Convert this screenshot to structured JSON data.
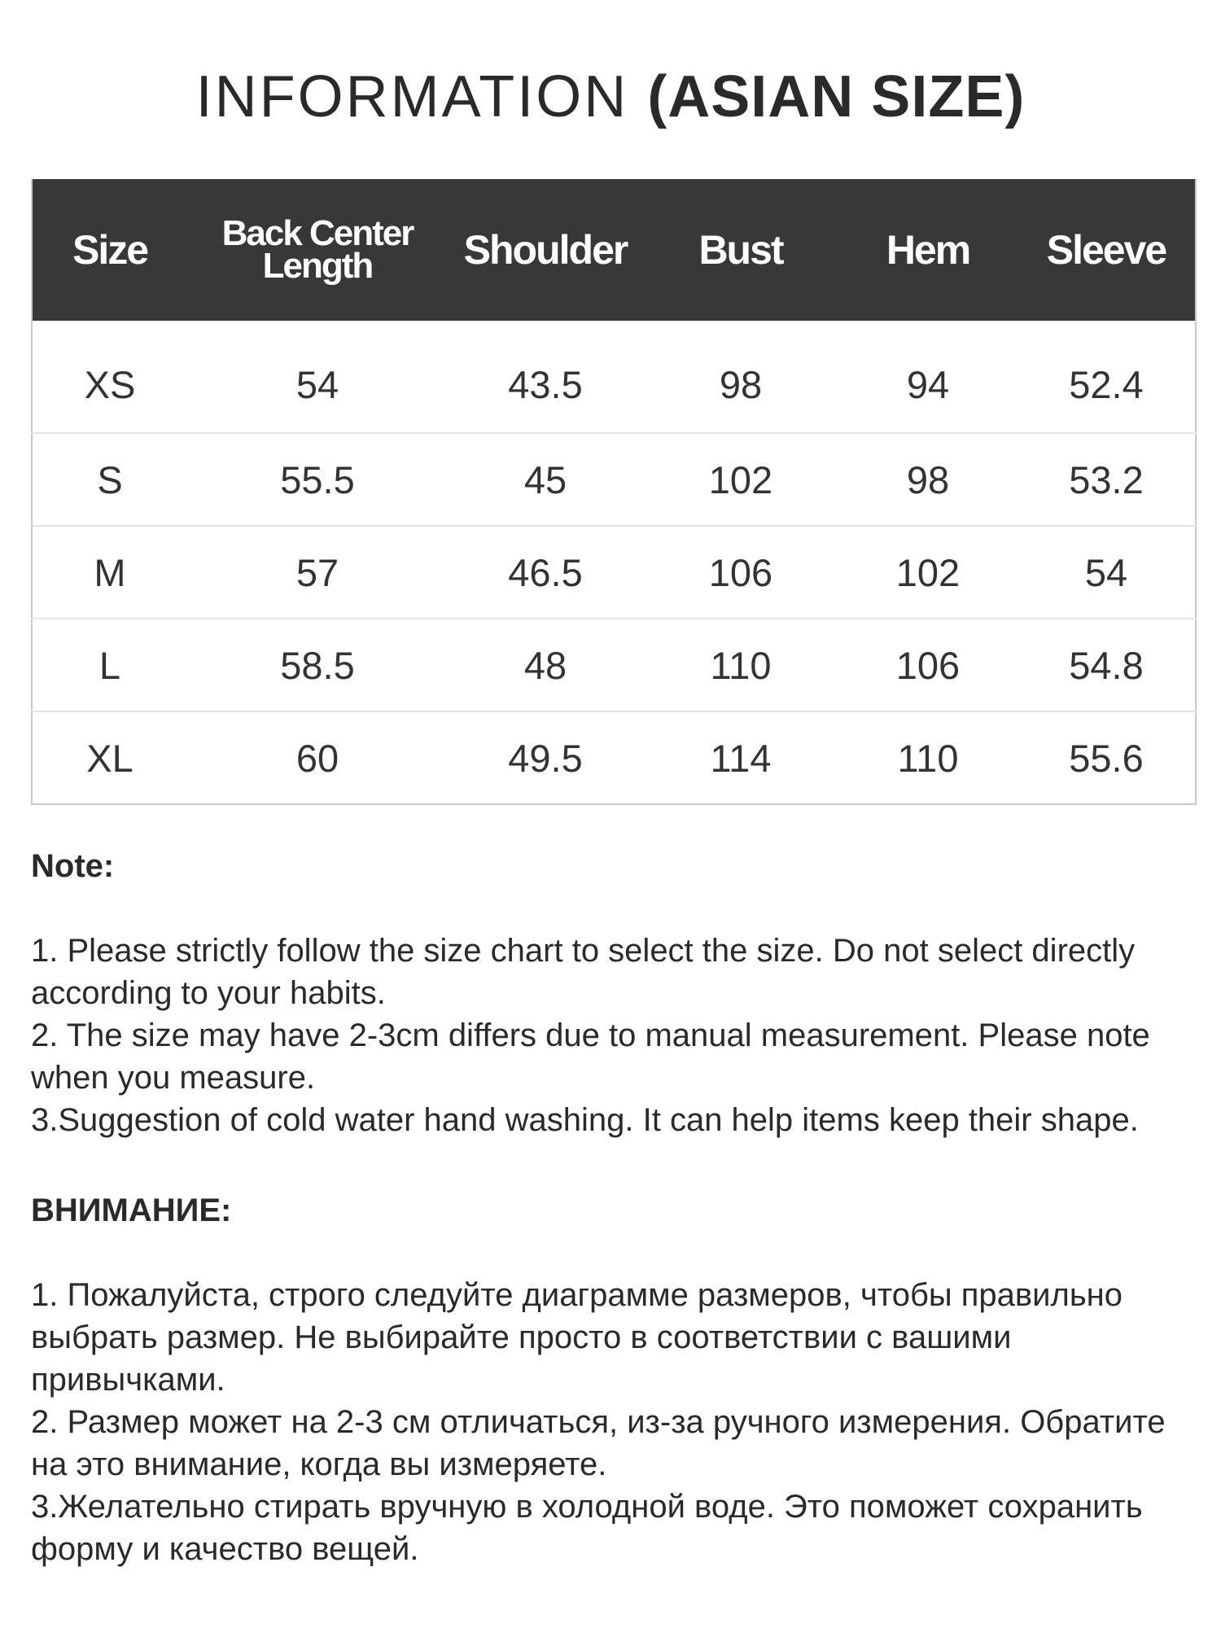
{
  "title": {
    "light": "INFORMATION",
    "bold": "(ASIAN SIZE)"
  },
  "table": {
    "headers": [
      "Size",
      "Back Center Length",
      "Shoulder",
      "Bust",
      "Hem",
      "Sleeve"
    ],
    "rows": [
      [
        "XS",
        "54",
        "43.5",
        "98",
        "94",
        "52.4"
      ],
      [
        "S",
        "55.5",
        "45",
        "102",
        "98",
        "53.2"
      ],
      [
        "M",
        "57",
        "46.5",
        "106",
        "102",
        "54"
      ],
      [
        "L",
        "58.5",
        "48",
        "110",
        "106",
        "54.8"
      ],
      [
        "XL",
        "60",
        "49.5",
        "114",
        "110",
        "55.6"
      ]
    ]
  },
  "note": {
    "heading": "Note:",
    "items": [
      "1. Please strictly follow the size chart  to select the size. Do not select directly according to your habits.",
      "2. The size may have 2-3cm differs due to manual measurement. Please note when you measure.",
      "3.Suggestion of cold water hand washing. It can help items keep their shape."
    ]
  },
  "note_ru": {
    "heading": "ВНИМАНИЕ:",
    "items": [
      "1. Пожалуйста, строго следуйте диаграмме размеров, чтобы правильно выбрать размер. Не выбирайте просто в соответствии с вашими привычками.",
      "2. Размер может на 2-3 см отличаться, из-за ручного измерения. Обратите на это внимание, когда вы измеряете.",
      "3.Желательно стирать вручную в холодной воде. Это поможет сохранить форму и качество вещей."
    ]
  },
  "colors": {
    "header_bg": "#383838",
    "header_text": "#ffffff",
    "row_border": "#e4e4e4"
  }
}
